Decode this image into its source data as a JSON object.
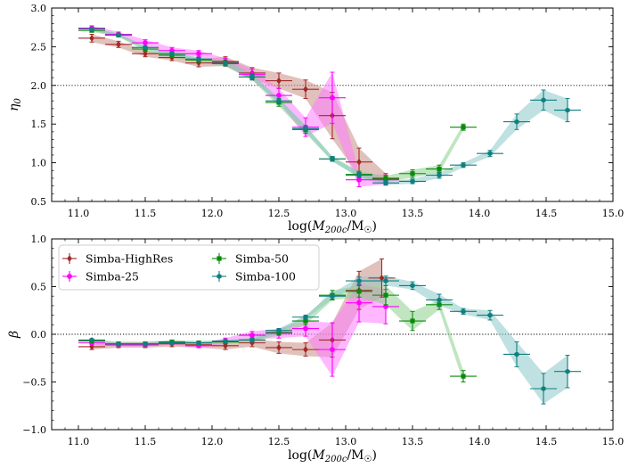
{
  "figure": {
    "series_style": [
      {
        "name": "Simba-HighRes",
        "color": "#a32828",
        "band": "#c88e84",
        "marker": "diamond"
      },
      {
        "name": "Simba-25",
        "color": "#ff00ff",
        "band": "#ff7cff",
        "marker": "circle"
      },
      {
        "name": "Simba-50",
        "color": "#0a8a0a",
        "band": "#8ccf8c",
        "marker": "square"
      },
      {
        "name": "Simba-100",
        "color": "#0f7f7f",
        "band": "#8cc8c8",
        "marker": "hexagon"
      }
    ]
  },
  "chart_data": [
    {
      "type": "line",
      "panel": "top",
      "ylabel": "η0",
      "xlabel": "log(M200c/M☉)",
      "xlim": [
        10.8,
        15.0
      ],
      "ylim": [
        0.5,
        3.0
      ],
      "xticks": [
        "11.0",
        "11.5",
        "12.0",
        "12.5",
        "13.0",
        "13.5",
        "14.0",
        "14.5",
        "15.0"
      ],
      "yticks": [
        "0.5",
        "1.0",
        "1.5",
        "2.0",
        "2.5",
        "3.0"
      ],
      "reference_line": 2.0,
      "series": [
        {
          "name": "Simba-HighRes",
          "x": [
            11.1,
            11.3,
            11.5,
            11.7,
            11.9,
            12.1,
            12.3,
            12.5,
            12.7,
            12.9,
            13.1,
            13.3
          ],
          "y": [
            2.61,
            2.53,
            2.41,
            2.36,
            2.29,
            2.31,
            2.16,
            2.06,
            1.95,
            1.61,
            1.01,
            0.8
          ],
          "yerr": [
            0.05,
            0.04,
            0.04,
            0.04,
            0.05,
            0.06,
            0.07,
            0.1,
            0.12,
            0.3,
            0.18,
            0.06
          ],
          "xerr": 0.1
        },
        {
          "name": "Simba-25",
          "x": [
            11.1,
            11.3,
            11.5,
            11.7,
            11.9,
            12.1,
            12.3,
            12.5,
            12.7,
            12.9,
            13.1,
            13.3
          ],
          "y": [
            2.74,
            2.66,
            2.55,
            2.45,
            2.41,
            2.3,
            2.14,
            1.87,
            1.46,
            1.84,
            0.78,
            0.78
          ],
          "yerr": [
            0.03,
            0.03,
            0.04,
            0.04,
            0.04,
            0.05,
            0.07,
            0.09,
            0.12,
            0.33,
            0.09,
            0.06
          ],
          "xerr": 0.1
        },
        {
          "name": "Simba-50",
          "x": [
            11.1,
            11.3,
            11.5,
            11.7,
            11.9,
            12.1,
            12.3,
            12.5,
            12.7,
            12.9,
            13.1,
            13.3,
            13.5,
            13.7,
            13.88
          ],
          "y": [
            2.71,
            2.65,
            2.47,
            2.39,
            2.33,
            2.29,
            2.11,
            1.78,
            1.43,
            1.05,
            0.85,
            0.79,
            0.86,
            0.92,
            1.46
          ],
          "yerr": [
            0.02,
            0.02,
            0.03,
            0.03,
            0.03,
            0.04,
            0.04,
            0.05,
            0.05,
            0.03,
            0.04,
            0.04,
            0.05,
            0.05,
            0.04
          ],
          "xerr": 0.1
        },
        {
          "name": "Simba-100",
          "x": [
            11.1,
            11.3,
            11.5,
            11.7,
            11.9,
            12.1,
            12.3,
            12.5,
            12.7,
            12.9,
            13.1,
            13.3,
            13.5,
            13.7,
            13.88,
            14.08,
            14.28,
            14.48,
            14.66
          ],
          "y": [
            2.73,
            2.65,
            2.49,
            2.41,
            2.34,
            2.28,
            2.11,
            1.8,
            1.44,
            1.05,
            0.84,
            0.74,
            0.76,
            0.84,
            0.97,
            1.12,
            1.53,
            1.81,
            1.68
          ],
          "yerr": [
            0.02,
            0.02,
            0.02,
            0.02,
            0.02,
            0.02,
            0.03,
            0.03,
            0.04,
            0.03,
            0.03,
            0.03,
            0.03,
            0.04,
            0.03,
            0.04,
            0.1,
            0.13,
            0.15
          ],
          "xerr": 0.1
        }
      ]
    },
    {
      "type": "line",
      "panel": "bottom",
      "ylabel": "β",
      "xlabel": "log(M200c/M☉)",
      "xlim": [
        10.8,
        15.0
      ],
      "ylim": [
        -1.0,
        1.0
      ],
      "xticks": [
        "11.0",
        "11.5",
        "12.0",
        "12.5",
        "13.0",
        "13.5",
        "14.0",
        "14.5",
        "15.0"
      ],
      "yticks": [
        "−1.0",
        "−0.5",
        "0.0",
        "0.5",
        "1.0"
      ],
      "reference_line": 0.0,
      "legend": {
        "location": "upper-left",
        "columns": 2
      },
      "series": [
        {
          "name": "Simba-HighRes",
          "x": [
            11.1,
            11.3,
            11.5,
            11.7,
            11.9,
            12.1,
            12.3,
            12.5,
            12.7,
            12.9,
            13.1,
            13.27
          ],
          "y": [
            -0.13,
            -0.11,
            -0.11,
            -0.1,
            -0.11,
            -0.12,
            -0.09,
            -0.14,
            -0.16,
            -0.06,
            0.46,
            0.59
          ],
          "yerr": [
            0.03,
            0.03,
            0.03,
            0.03,
            0.03,
            0.04,
            0.04,
            0.06,
            0.07,
            0.18,
            0.2,
            0.2
          ],
          "xerr": 0.1
        },
        {
          "name": "Simba-25",
          "x": [
            11.1,
            11.3,
            11.5,
            11.7,
            11.9,
            12.1,
            12.3,
            12.5,
            12.7,
            12.9,
            13.1,
            13.3
          ],
          "y": [
            -0.09,
            -0.11,
            -0.11,
            -0.09,
            -0.12,
            -0.07,
            -0.01,
            0.01,
            0.06,
            -0.16,
            0.33,
            0.29
          ],
          "yerr": [
            0.02,
            0.02,
            0.02,
            0.02,
            0.02,
            0.03,
            0.04,
            0.05,
            0.08,
            0.28,
            0.2,
            0.18
          ],
          "xerr": 0.1
        },
        {
          "name": "Simba-50",
          "x": [
            11.1,
            11.3,
            11.5,
            11.7,
            11.9,
            12.1,
            12.3,
            12.5,
            12.7,
            12.9,
            13.1,
            13.3,
            13.5,
            13.7,
            13.88
          ],
          "y": [
            -0.07,
            -0.1,
            -0.1,
            -0.08,
            -0.09,
            -0.08,
            -0.06,
            0.02,
            0.14,
            0.41,
            0.45,
            0.41,
            0.14,
            0.31,
            -0.44
          ],
          "yerr": [
            0.02,
            0.02,
            0.02,
            0.02,
            0.02,
            0.02,
            0.02,
            0.03,
            0.04,
            0.05,
            0.06,
            0.1,
            0.1,
            0.05,
            0.06
          ],
          "xerr": 0.1
        },
        {
          "name": "Simba-100",
          "x": [
            11.1,
            11.3,
            11.5,
            11.7,
            11.9,
            12.1,
            12.3,
            12.5,
            12.7,
            12.9,
            13.1,
            13.3,
            13.5,
            13.7,
            13.88,
            14.08,
            14.28,
            14.48,
            14.66
          ],
          "y": [
            -0.06,
            -0.1,
            -0.1,
            -0.09,
            -0.09,
            -0.07,
            -0.06,
            0.04,
            0.18,
            0.4,
            0.56,
            0.56,
            0.51,
            0.36,
            0.24,
            0.2,
            -0.21,
            -0.57,
            -0.39
          ],
          "yerr": [
            0.01,
            0.01,
            0.01,
            0.01,
            0.01,
            0.01,
            0.02,
            0.02,
            0.02,
            0.03,
            0.04,
            0.05,
            0.04,
            0.06,
            0.03,
            0.05,
            0.13,
            0.16,
            0.17
          ],
          "xerr": 0.1
        }
      ]
    }
  ]
}
